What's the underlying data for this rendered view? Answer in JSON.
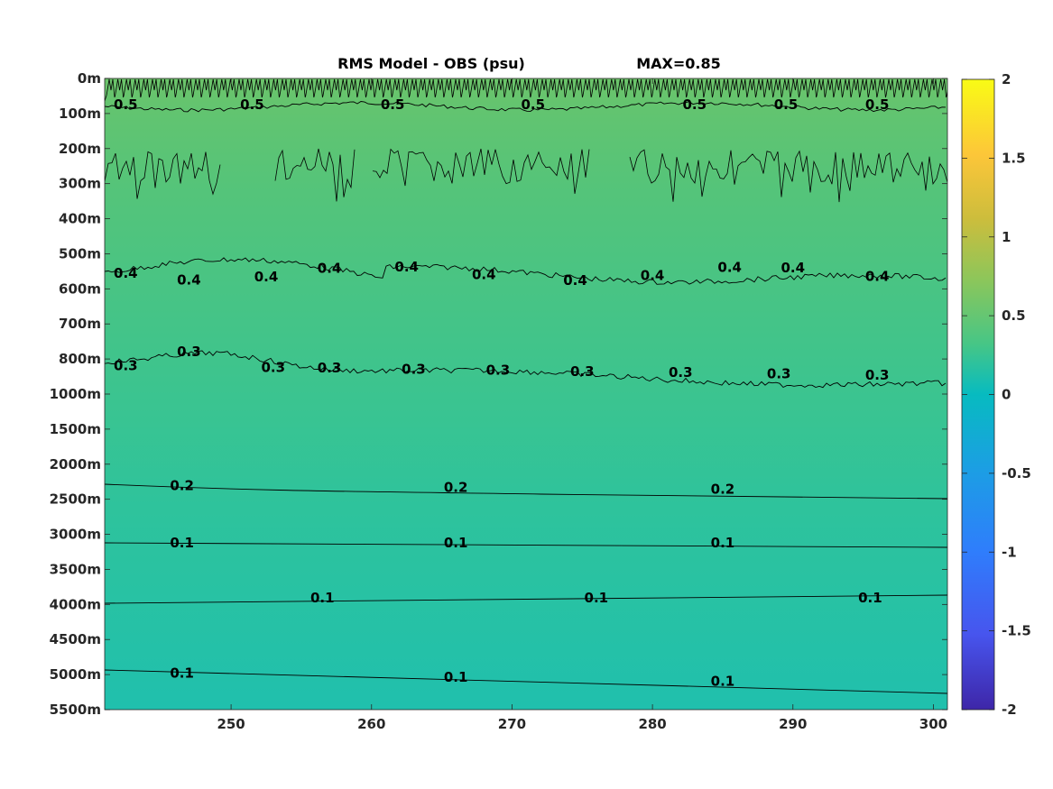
{
  "chart_data": {
    "type": "heatmap",
    "title": "RMS Model - OBS (psu)",
    "subtitle": "MAX=0.85",
    "x_ticks": [
      250,
      260,
      270,
      280,
      290,
      300
    ],
    "xlim": [
      241,
      301
    ],
    "y_tick_labels": [
      "0m",
      "100m",
      "200m",
      "300m",
      "400m",
      "500m",
      "600m",
      "700m",
      "800m",
      "1000m",
      "1500m",
      "2000m",
      "2500m",
      "3000m",
      "3500m",
      "4000m",
      "4500m",
      "5000m",
      "5500m"
    ],
    "colorbar": {
      "ticks": [
        "2",
        "1.5",
        "1",
        "0.5",
        "0",
        "-0.5",
        "-1",
        "-1.5",
        "-2"
      ],
      "range": [
        -2,
        2
      ],
      "colormap": [
        "#3e26a8",
        "#4743f5",
        "#2f81fc",
        "#19a7e3",
        "#06bdb1",
        "#3bc88c",
        "#8bc65b",
        "#d8b93c",
        "#fcc639",
        "#f9fb15"
      ]
    },
    "field_gradient": [
      {
        "depth": "0m",
        "value": 0.6
      },
      {
        "depth": "300m",
        "value": 0.5
      },
      {
        "depth": "800m",
        "value": 0.38
      },
      {
        "depth": "2500m",
        "value": 0.22
      },
      {
        "depth": "5500m",
        "value": 0.12
      }
    ],
    "contours": [
      {
        "level": 0.5,
        "labels": [
          {
            "x": 242.5,
            "text": "0.5"
          },
          {
            "x": 251.5,
            "text": "0.5"
          },
          {
            "x": 261.5,
            "text": "0.5"
          },
          {
            "x": 271.5,
            "text": "0.5"
          },
          {
            "x": 283,
            "text": "0.5"
          },
          {
            "x": 289.5,
            "text": "0.5"
          },
          {
            "x": 296,
            "text": "0.5"
          }
        ]
      },
      {
        "level": 0.4,
        "labels": [
          {
            "x": 242.5,
            "text": "0.4"
          },
          {
            "x": 247,
            "text": "0.4"
          },
          {
            "x": 252.5,
            "text": "0.4"
          },
          {
            "x": 257,
            "text": "0.4"
          },
          {
            "x": 262.5,
            "text": "0.4"
          },
          {
            "x": 268,
            "text": "0.4"
          },
          {
            "x": 274.5,
            "text": "0.4"
          },
          {
            "x": 280,
            "text": "0.4"
          },
          {
            "x": 285.5,
            "text": "0.4"
          },
          {
            "x": 290,
            "text": "0.4"
          },
          {
            "x": 296,
            "text": "0.4"
          }
        ]
      },
      {
        "level": 0.3,
        "labels": [
          {
            "x": 242.5,
            "text": "0.3"
          },
          {
            "x": 247,
            "text": "0.3"
          },
          {
            "x": 253,
            "text": "0.3"
          },
          {
            "x": 257,
            "text": "0.3"
          },
          {
            "x": 263,
            "text": "0.3"
          },
          {
            "x": 269,
            "text": "0.3"
          },
          {
            "x": 275,
            "text": "0.3"
          },
          {
            "x": 282,
            "text": "0.3"
          },
          {
            "x": 289,
            "text": "0.3"
          },
          {
            "x": 296,
            "text": "0.3"
          }
        ]
      },
      {
        "level": 0.2,
        "labels": [
          {
            "x": 246.5,
            "text": "0.2"
          },
          {
            "x": 266,
            "text": "0.2"
          },
          {
            "x": 285,
            "text": "0.2"
          }
        ]
      },
      {
        "level": 0.1,
        "labels": [
          {
            "x": 246.5,
            "text": "0.1"
          },
          {
            "x": 266,
            "text": "0.1"
          },
          {
            "x": 285,
            "text": "0.1"
          }
        ]
      },
      {
        "level": 0.1,
        "labels": [
          {
            "x": 256.5,
            "text": "0.1"
          },
          {
            "x": 276,
            "text": "0.1"
          },
          {
            "x": 295.5,
            "text": "0.1"
          }
        ]
      },
      {
        "level": 0.1,
        "labels": [
          {
            "x": 246.5,
            "text": "0.1"
          },
          {
            "x": 266,
            "text": "0.1"
          },
          {
            "x": 285,
            "text": "0.1"
          }
        ]
      }
    ]
  }
}
